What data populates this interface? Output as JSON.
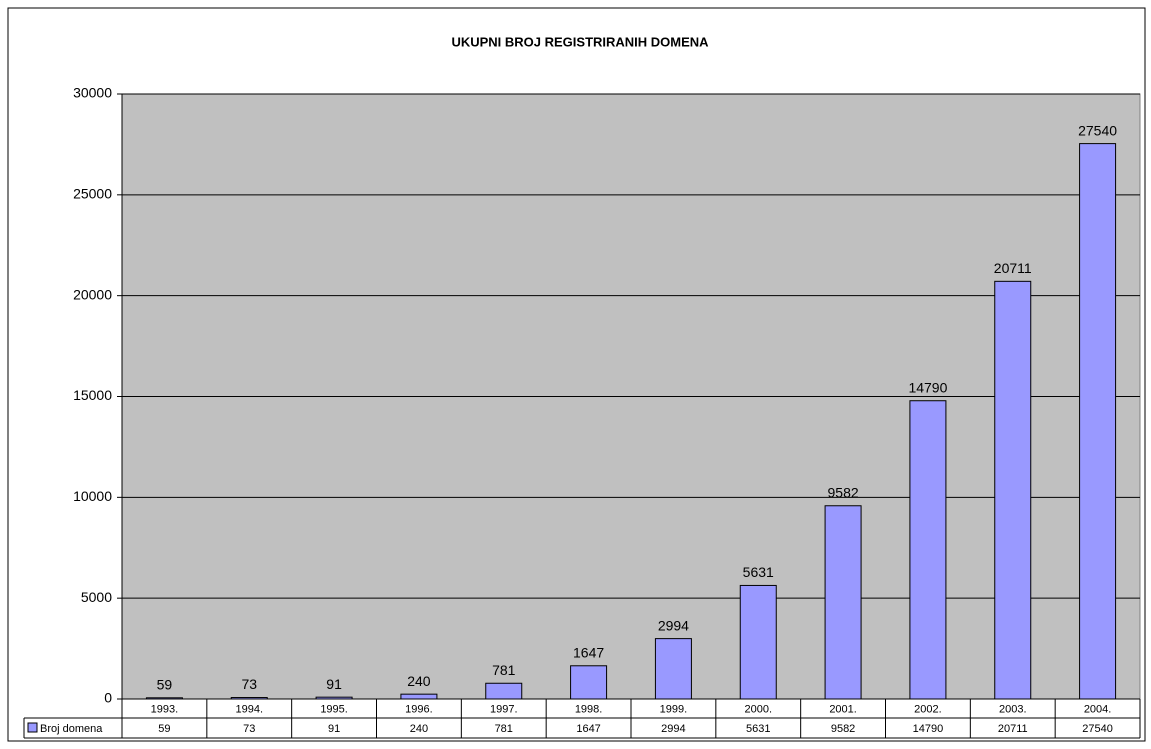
{
  "chart_data": {
    "type": "bar",
    "title": "UKUPNI BROJ REGISTRIRANIH DOMENA",
    "categories": [
      "1993.",
      "1994.",
      "1995.",
      "1996.",
      "1997.",
      "1998.",
      "1999.",
      "2000.",
      "2001.",
      "2002.",
      "2003.",
      "2004."
    ],
    "series": [
      {
        "name": "Broj domena",
        "color": "#9999ff",
        "values": [
          59,
          73,
          91,
          240,
          781,
          1647,
          2994,
          5631,
          9582,
          14790,
          20711,
          27540
        ]
      }
    ],
    "ylim": [
      0,
      30000
    ],
    "yticks": [
      0,
      5000,
      10000,
      15000,
      20000,
      25000,
      30000
    ],
    "grid": true,
    "data_table": true
  }
}
